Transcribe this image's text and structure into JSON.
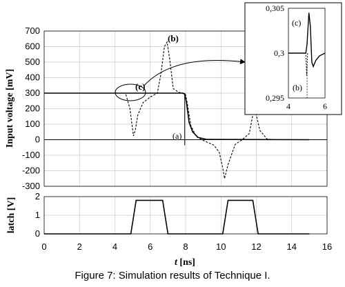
{
  "caption": "Figure 7: Simulation results of Technique I.",
  "chart_data": [
    {
      "type": "line",
      "ylabel": "Input voltage [mV]",
      "ylim": [
        -300,
        700
      ],
      "yticks": [
        "700",
        "600",
        "500",
        "400",
        "300",
        "200",
        "100",
        "0",
        "-100",
        "-200",
        "-300"
      ],
      "xlim": [
        0,
        16
      ],
      "grid": true,
      "annotations": [
        "(a)",
        "(b)",
        "(c)"
      ],
      "series": [
        {
          "style": "solid",
          "x": [
            0,
            4.5,
            5.0,
            7.8,
            7.95,
            8.05,
            8.2,
            8.4,
            8.7,
            9.2,
            15
          ],
          "y": [
            300,
            300,
            300,
            300,
            295,
            240,
            110,
            50,
            15,
            2,
            0
          ]
        },
        {
          "style": "dashed",
          "x": [
            0,
            4.6,
            4.85,
            5.05,
            5.15,
            5.3,
            5.6,
            6.0,
            6.4,
            6.6,
            6.8,
            6.95,
            7.1,
            7.3,
            7.6,
            7.9,
            8.0,
            8.1,
            8.3,
            8.6,
            9.0,
            9.6,
            9.9,
            10.1,
            10.2,
            10.4,
            10.8,
            11.2,
            11.6,
            11.8,
            11.95,
            12.2,
            12.6,
            13.0,
            15
          ],
          "y": [
            300,
            300,
            200,
            25,
            60,
            160,
            240,
            275,
            300,
            420,
            600,
            630,
            520,
            330,
            305,
            300,
            290,
            230,
            90,
            20,
            -5,
            -35,
            -80,
            -180,
            -250,
            -160,
            -30,
            0,
            40,
            160,
            185,
            60,
            5,
            0,
            0
          ]
        }
      ]
    },
    {
      "type": "line",
      "ylabel": "latch [V]",
      "ylim": [
        0,
        2
      ],
      "yticks": [
        "2",
        "1",
        "0"
      ],
      "xlim": [
        0,
        16
      ],
      "xticks": [
        "0",
        "2",
        "4",
        "6",
        "8",
        "10",
        "12",
        "14",
        "16"
      ],
      "xlabel_var": "t",
      "xlabel_unit": " [ns]",
      "series": [
        {
          "style": "solid",
          "x": [
            0,
            4.9,
            5.2,
            6.7,
            7.0,
            10.1,
            10.4,
            11.8,
            12.1,
            15
          ],
          "y": [
            0,
            0,
            1.8,
            1.8,
            0,
            0,
            1.8,
            1.8,
            0,
            0
          ]
        }
      ]
    },
    {
      "type": "line",
      "inset": true,
      "ylim": [
        0.295,
        0.305
      ],
      "yticks": [
        "0,305",
        "0,3",
        "0,295"
      ],
      "xlim": [
        4,
        6
      ],
      "xticks": [
        "4",
        "6"
      ],
      "annotations": [
        "(c)",
        "(b)"
      ],
      "series": [
        {
          "style": "solid",
          "x": [
            4,
            4.95,
            5.02,
            5.12,
            5.2,
            5.28,
            5.36,
            5.5,
            5.7,
            6.0
          ],
          "y": [
            0.3,
            0.3,
            0.301,
            0.3045,
            0.303,
            0.299,
            0.2985,
            0.2992,
            0.2997,
            0.3
          ]
        },
        {
          "style": "dashed",
          "x": [
            4,
            4.95,
            4.98,
            5.0,
            5.02,
            5.05
          ],
          "y": [
            0.3,
            0.3,
            0.2985,
            0.2975,
            0.2985,
            0.3
          ]
        }
      ]
    }
  ]
}
